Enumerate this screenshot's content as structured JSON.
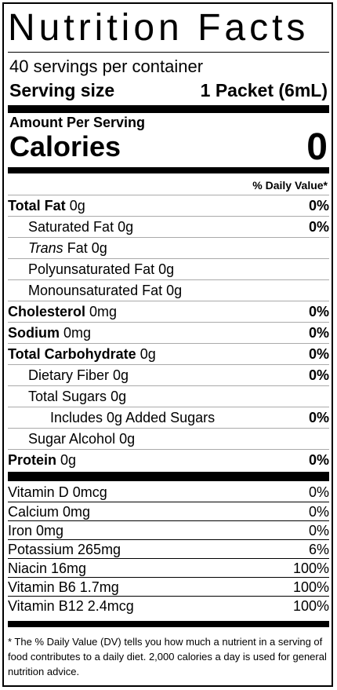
{
  "title": "Nutrition Facts",
  "servings_per_container": "40 servings per container",
  "serving_size_label": "Serving size",
  "serving_size_value": "1 Packet (6mL)",
  "amount_per_serving": "Amount Per Serving",
  "calories_label": "Calories",
  "calories_value": "0",
  "daily_value_header": "% Daily Value*",
  "nutrients": [
    {
      "name": "Total Fat",
      "amount": "0g",
      "pct": "0%"
    },
    {
      "name": "Saturated Fat",
      "amount": "0g",
      "pct": "0%"
    },
    {
      "name": "Trans",
      "amount": "Fat 0g",
      "pct": ""
    },
    {
      "name": "Polyunsaturated Fat",
      "amount": "0g",
      "pct": ""
    },
    {
      "name": "Monounsaturated Fat",
      "amount": "0g",
      "pct": ""
    },
    {
      "name": "Cholesterol",
      "amount": "0mg",
      "pct": "0%"
    },
    {
      "name": "Sodium",
      "amount": "0mg",
      "pct": "0%"
    },
    {
      "name": "Total Carbohydrate",
      "amount": "0g",
      "pct": "0%"
    },
    {
      "name": "Dietary Fiber",
      "amount": "0g",
      "pct": "0%"
    },
    {
      "name": "Total Sugars",
      "amount": "0g",
      "pct": ""
    },
    {
      "name": "Includes 0g Added Sugars",
      "amount": "",
      "pct": "0%"
    },
    {
      "name": "Sugar Alcohol",
      "amount": "0g",
      "pct": ""
    },
    {
      "name": "Protein",
      "amount": "0g",
      "pct": "0%"
    }
  ],
  "vitamins": [
    {
      "name": "Vitamin D 0mcg",
      "pct": "0%"
    },
    {
      "name": "Calcium 0mg",
      "pct": "0%"
    },
    {
      "name": "Iron 0mg",
      "pct": "0%"
    },
    {
      "name": "Potassium 265mg",
      "pct": "6%"
    },
    {
      "name": "Niacin 16mg",
      "pct": "100%"
    },
    {
      "name": "Vitamin B6 1.7mg",
      "pct": "100%"
    },
    {
      "name": "Vitamin B12 2.4mcg",
      "pct": "100%"
    }
  ],
  "footnote": "* The % Daily Value (DV) tells you how much a nutrient in a serving of food contributes to a daily diet. 2,000 calories a day is used for general nutrition advice."
}
